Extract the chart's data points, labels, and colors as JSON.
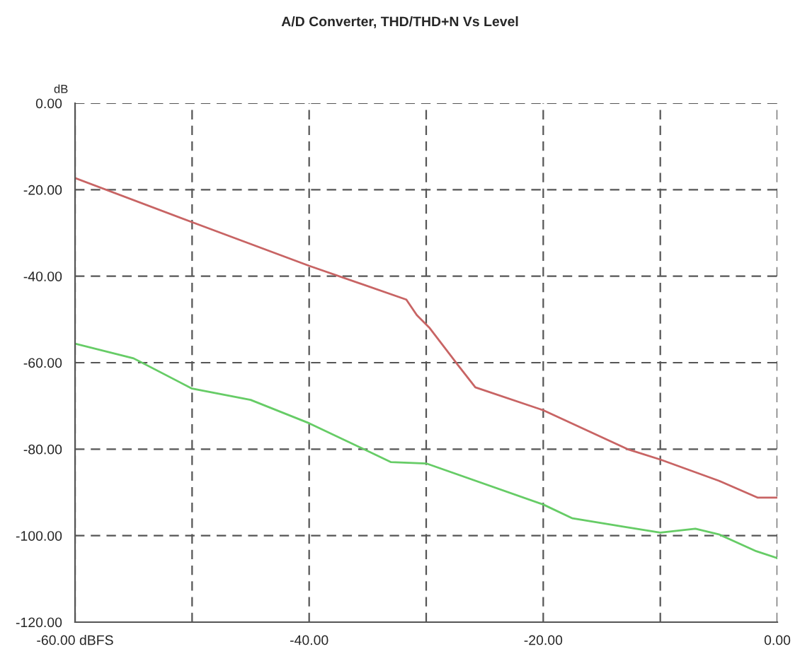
{
  "chart_data": {
    "type": "line",
    "title": "A/D Converter, THD/THD+N Vs Level",
    "ylabel": "dB",
    "series": [
      {
        "color": "#c86464",
        "x": [
          -60,
          -50,
          -40,
          -31.7,
          -30.8,
          -29.7,
          -27.3,
          -25.8,
          -20,
          -12.8,
          -10,
          -5,
          -1.7,
          0
        ],
        "values": [
          -17.3,
          -27.5,
          -37.6,
          -45.4,
          -49,
          -52,
          -60.5,
          -65.7,
          -71,
          -80,
          -82.4,
          -87.3,
          -91.2,
          -91.2
        ]
      },
      {
        "color": "#66cc66",
        "x": [
          -60,
          -55,
          -50,
          -45,
          -40,
          -33,
          -30,
          -20,
          -17.5,
          -13,
          -10,
          -7,
          -5,
          -1.8,
          0
        ],
        "values": [
          -55.6,
          -59,
          -66,
          -68.6,
          -74,
          -83,
          -83.3,
          -92.8,
          -96,
          -98,
          -99.3,
          -98.4,
          -99.7,
          -103.6,
          -105.2
        ]
      }
    ],
    "xlim": [
      -60,
      0
    ],
    "ylim": [
      -120,
      0
    ],
    "xticks": [
      {
        "value": -60,
        "label": "-60.00 dBFS"
      },
      {
        "value": -50,
        "label": null
      },
      {
        "value": -40,
        "label": "-40.00"
      },
      {
        "value": -30,
        "label": null
      },
      {
        "value": -20,
        "label": "-20.00"
      },
      {
        "value": -10,
        "label": null
      },
      {
        "value": 0,
        "label": "0.00"
      }
    ],
    "yticks": [
      {
        "value": -120,
        "label": "-120.00"
      },
      {
        "value": -100,
        "label": "-100.00"
      },
      {
        "value": -80,
        "label": "-80.00"
      },
      {
        "value": -60,
        "label": "-60.00"
      },
      {
        "value": -40,
        "label": "-40.00"
      },
      {
        "value": -20,
        "label": "-20.00"
      },
      {
        "value": 0,
        "label": "0.00"
      }
    ],
    "grid": true,
    "line_style": "solid",
    "marker": "none"
  }
}
